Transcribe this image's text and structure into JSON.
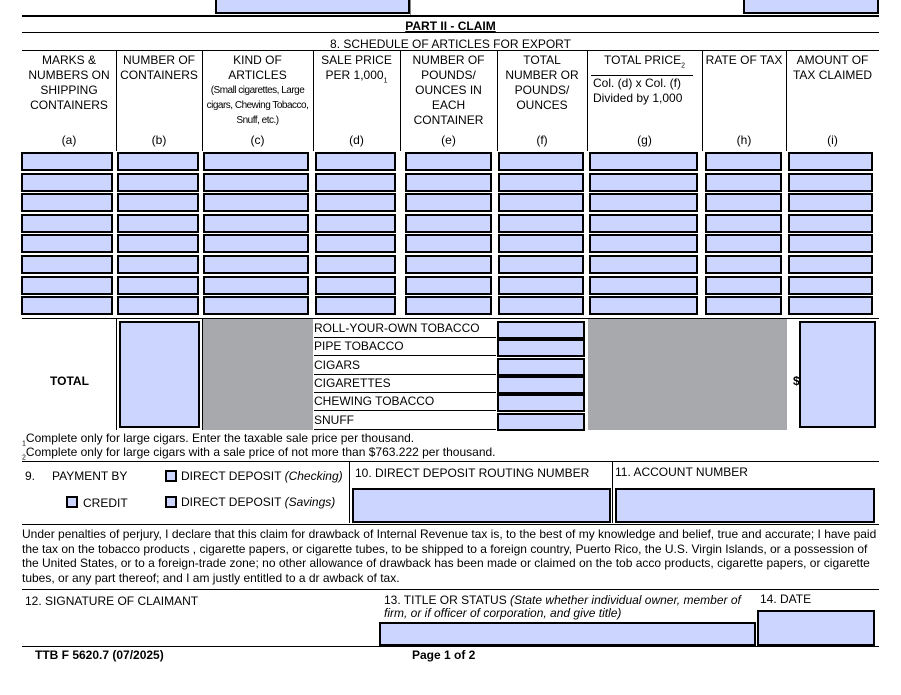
{
  "part_title": "PART II - CLAIM",
  "schedule_title": "8. SCHEDULE OF ARTICLES FOR EXPORT",
  "columns": [
    {
      "header": "MARKS & NUMBERS ON SHIPPING CONTAINERS",
      "letter": "(a)"
    },
    {
      "header": "NUMBER OF CONTAINERS",
      "letter": "(b)"
    },
    {
      "header": "KIND OF ARTICLES",
      "sub": "(Small cigarettes, Large cigars, Chewing Tobacco, Snuff, etc.)",
      "letter": "(c)"
    },
    {
      "header": "SALE PRICE PER 1,000",
      "sup": "1",
      "letter": "(d)"
    },
    {
      "header": "NUMBER OF POUNDS/ OUNCES IN EACH CONTAINER",
      "letter": "(e)"
    },
    {
      "header": "TOTAL NUMBER OR POUNDS/ OUNCES",
      "letter": "(f)"
    },
    {
      "header": "TOTAL PRICE",
      "sup": "2",
      "sub": "Col. (d) x Col. (f) Divided by 1,000",
      "letter": "(g)"
    },
    {
      "header": "RATE OF TAX",
      "letter": "(h)"
    },
    {
      "header": "AMOUNT OF TAX CLAIMED",
      "letter": "(i)"
    }
  ],
  "total_label": "TOTAL",
  "dollar_sign": "$",
  "article_types": [
    "ROLL-YOUR-OWN TOBACCO",
    "PIPE TOBACCO",
    "CIGARS",
    "CIGARETTES",
    "CHEWING  TOBACCO",
    "SNUFF"
  ],
  "footnotes": [
    {
      "mark": "1",
      "text": "Complete only for large cigars.  Enter the taxable sale price per thousand."
    },
    {
      "mark": "2",
      "text": "Complete only for large cigars with a sale price of not more than $763.222 per thousand."
    }
  ],
  "payment": {
    "number": "9.",
    "label": "PAYMENT BY",
    "options": [
      {
        "label": "DIRECT DEPOSIT",
        "note": "(Checking)",
        "checked": false
      },
      {
        "label": "CREDIT",
        "checked": false
      },
      {
        "label": "DIRECT DEPOSIT",
        "note": "(Savings)",
        "checked": false
      }
    ]
  },
  "routing_label": "10. DIRECT DEPOSIT ROUTING NUMBER",
  "account_label": "11. ACCOUNT NUMBER",
  "certification": "Under penalties of perjury, I declare that this claim for drawback of Internal Revenue tax is, to the best of my knowledge and belief, true and accurate; I have paid the tax on the tobacco products , cigarette papers, or cigarette tubes, to be shipped to a foreign country, Puerto Rico, the U.S. Virgin Islands, or a possession of the United States, or to a foreign-trade zone; no other allowance of drawback has been made or claimed on the tob acco products, cigarette papers, or cigarette tubes, or any part thereof; and I am justly entitled to a dr awback of tax.",
  "signature_label": "12.   SIGNATURE OF CLAIMANT",
  "title_label": "13. TITLE OR STATUS",
  "title_note": "(State whether individual owner, member of firm, or if officer of corporation, and give title)",
  "date_label": "14. DATE",
  "form_id": "TTB F 5620.7  (07/2025)",
  "page_label": "Page 1 of 2",
  "colors": {
    "field": "#ccd5ff",
    "shaded": "#a8a9ad"
  }
}
